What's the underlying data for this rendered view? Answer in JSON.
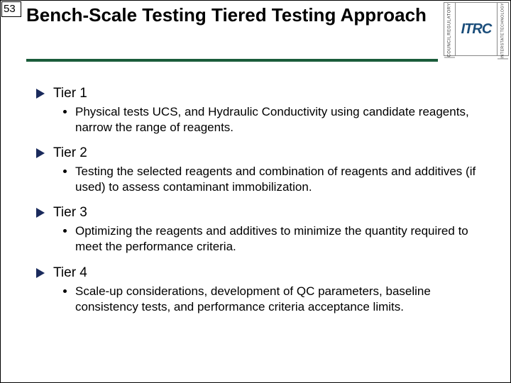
{
  "slide_number": "53",
  "title": "Bench-Scale Testing Tiered Testing Approach",
  "logo": {
    "left_top": "COUNCIL",
    "left_bottom": "REGULATORY",
    "center": "ITRC",
    "right_top": "INTERSTATE",
    "right_bottom": "TECHNOLOGY"
  },
  "tiers": [
    {
      "label": "Tier 1",
      "detail": "Physical tests UCS, and Hydraulic Conductivity using candidate reagents, narrow the range of reagents."
    },
    {
      "label": "Tier 2",
      "detail": "Testing the selected reagents and combination of reagents and additives (if used) to assess contaminant immobilization."
    },
    {
      "label": "Tier 3",
      "detail": "Optimizing the reagents and additives to minimize the quantity required to meet the performance criteria."
    },
    {
      "label": "Tier 4",
      "detail": "Scale-up considerations, development of QC parameters, baseline consistency tests, and performance criteria acceptance limits."
    }
  ],
  "colors": {
    "underline": "#1a5c3a",
    "arrow": "#1a2a5c",
    "logo_text": "#1a4d7a"
  }
}
